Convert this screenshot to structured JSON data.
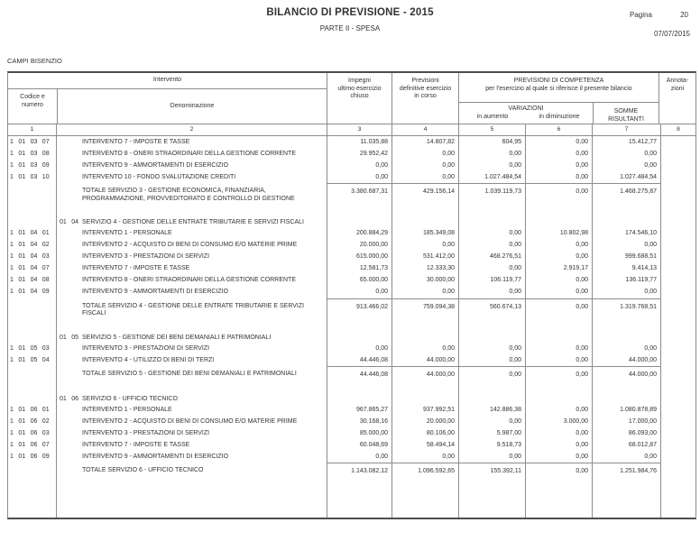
{
  "page": {
    "title": "BILANCIO DI PREVISIONE - 2015",
    "subtitle": "PARTE II - SPESA",
    "page_label": "Pagina",
    "page_number": "20",
    "date": "07/07/2015",
    "entity": "CAMPI BISENZIO"
  },
  "colors": {
    "text": "#333333",
    "grid_line": "#8c8c8c"
  },
  "table": {
    "headers": {
      "intervento": "Intervento",
      "codice": "Codice e\nnumero",
      "denominazione": "Denominazione",
      "impegni": "Impegni\nultimo esercizio\nchiuso",
      "previsioni": "Previsioni\ndefinitive esercizio\nin corso",
      "competenza_line1": "PREVISIONI DI COMPETENZA",
      "competenza_line2": "per l'esercizio al quale si riferisce il presente bilancio",
      "variazioni": "VARIAZIONI",
      "in_aumento": "in aumento",
      "in_diminuzione": "in diminuzione",
      "somme": "SOMME\nRISULTANTI",
      "annotazioni": "Annota-\nzioni"
    },
    "column_numbers": [
      "1",
      "2",
      "3",
      "4",
      "5",
      "6",
      "7",
      "8"
    ],
    "rows": [
      {
        "type": "intervento",
        "code": "1 01 03 07",
        "label": "INTERVENTO 7 - IMPOSTE E TASSE",
        "values": [
          "11.035,88",
          "14.807,82",
          "604,95",
          "0,00",
          "15.412,77"
        ]
      },
      {
        "type": "intervento",
        "code": "1 01 03 08",
        "label": "INTERVENTO 8 - ONERI STRAORDINARI DELLA GESTIONE CORRENTE",
        "values": [
          "29.952,42",
          "0,00",
          "0,00",
          "0,00",
          "0,00"
        ]
      },
      {
        "type": "intervento",
        "code": "1 01 03 09",
        "label": "INTERVENTO 9 - AMMORTAMENTI DI ESERCIZIO",
        "values": [
          "0,00",
          "0,00",
          "0,00",
          "0,00",
          "0,00"
        ]
      },
      {
        "type": "intervento",
        "code": "1 01 03 10",
        "label": "INTERVENTO 10 - FONDO SVALUTAZIONE CREDITI",
        "values": [
          "0,00",
          "0,00",
          "1.027.484,54",
          "0,00",
          "1.027.484,54"
        ]
      },
      {
        "type": "totale",
        "label": "TOTALE SERVIZIO 3 - GESTIONE ECONOMICA, FINANZIARIA, PROGRAMMAZIONE, PROVVEDITORATO E CONTROLLO DI GESTIONE",
        "values": [
          "3.380.687,31",
          "429.156,14",
          "1.039.119,73",
          "0,00",
          "1.468.275,87"
        ]
      },
      {
        "type": "servizio",
        "service_code": "01 04",
        "label": "SERVIZIO 4 - GESTIONE DELLE ENTRATE TRIBUTARIE E SERVIZI FISCALI",
        "values": [
          "",
          "",
          "",
          "",
          ""
        ]
      },
      {
        "type": "intervento",
        "code": "1 01 04 01",
        "label": "INTERVENTO 1 - PERSONALE",
        "values": [
          "200.884,29",
          "185.349,08",
          "0,00",
          "10.802,98",
          "174.546,10"
        ]
      },
      {
        "type": "intervento",
        "code": "1 01 04 02",
        "label": "INTERVENTO 2 - ACQUISTO DI BENI DI CONSUMO E/O MATERIE PRIME",
        "values": [
          "20.000,00",
          "0,00",
          "0,00",
          "0,00",
          "0,00"
        ]
      },
      {
        "type": "intervento",
        "code": "1 01 04 03",
        "label": "INTERVENTO 3 - PRESTAZIONI DI SERVIZI",
        "values": [
          "615.000,00",
          "531.412,00",
          "468.276,51",
          "0,00",
          "999.688,51"
        ]
      },
      {
        "type": "intervento",
        "code": "1 01 04 07",
        "label": "INTERVENTO 7 - IMPOSTE E TASSE",
        "values": [
          "12.581,73",
          "12.333,30",
          "0,00",
          "2.919,17",
          "9.414,13"
        ]
      },
      {
        "type": "intervento",
        "code": "1 01 04 08",
        "label": "INTERVENTO 8 - ONERI STRAORDINARI DELLA GESTIONE CORRENTE",
        "values": [
          "65.000,00",
          "30.000,00",
          "106.119,77",
          "0,00",
          "136.119,77"
        ]
      },
      {
        "type": "intervento",
        "code": "1 01 04 09",
        "label": "INTERVENTO 9 - AMMORTAMENTI DI ESERCIZIO",
        "values": [
          "0,00",
          "0,00",
          "0,00",
          "0,00",
          "0,00"
        ]
      },
      {
        "type": "totale",
        "label": "TOTALE SERVIZIO 4 - GESTIONE DELLE ENTRATE TRIBUTARIE E SERVIZI FISCALI",
        "values": [
          "913.466,02",
          "759.094,38",
          "560.674,13",
          "0,00",
          "1.319.768,51"
        ]
      },
      {
        "type": "servizio",
        "service_code": "01 05",
        "label": "SERVIZIO 5 - GESTIONE DEI BENI DEMANIALI E PATRIMONIALI",
        "values": [
          "",
          "",
          "",
          "",
          ""
        ]
      },
      {
        "type": "intervento",
        "code": "1 01 05 03",
        "label": "INTERVENTO 3 - PRESTAZIONI DI SERVIZI",
        "values": [
          "0,00",
          "0,00",
          "0,00",
          "0,00",
          "0,00"
        ]
      },
      {
        "type": "intervento",
        "code": "1 01 05 04",
        "label": "INTERVENTO 4 - UTILIZZO DI BENI DI TERZI",
        "values": [
          "44.446,08",
          "44.000,00",
          "0,00",
          "0,00",
          "44.000,00"
        ]
      },
      {
        "type": "totale",
        "label": "TOTALE SERVIZIO 5 - GESTIONE DEI BENI DEMANIALI E PATRIMONIALI",
        "values": [
          "44.446,08",
          "44.000,00",
          "0,00",
          "0,00",
          "44.000,00"
        ]
      },
      {
        "type": "servizio",
        "service_code": "01 06",
        "label": "SERVIZIO 6 - UFFICIO TECNICO",
        "values": [
          "",
          "",
          "",
          "",
          ""
        ]
      },
      {
        "type": "intervento",
        "code": "1 01 06 01",
        "label": "INTERVENTO 1 - PERSONALE",
        "values": [
          "967.865,27",
          "937.992,51",
          "142.886,38",
          "0,00",
          "1.080.878,89"
        ]
      },
      {
        "type": "intervento",
        "code": "1 01 06 02",
        "label": "INTERVENTO 2 - ACQUISTO DI BENI DI CONSUMO E/O MATERIE PRIME",
        "values": [
          "30.168,16",
          "20.000,00",
          "0,00",
          "3.000,00",
          "17.000,00"
        ]
      },
      {
        "type": "intervento",
        "code": "1 01 06 03",
        "label": "INTERVENTO 3 - PRESTAZIONI DI SERVIZI",
        "values": [
          "85.000,00",
          "80.106,00",
          "5.987,00",
          "0,00",
          "86.093,00"
        ]
      },
      {
        "type": "intervento",
        "code": "1 01 06 07",
        "label": "INTERVENTO 7 - IMPOSTE E TASSE",
        "values": [
          "60.048,69",
          "58.494,14",
          "9.518,73",
          "0,00",
          "68.012,87"
        ]
      },
      {
        "type": "intervento",
        "code": "1 01 06 09",
        "label": "INTERVENTO 9 - AMMORTAMENTI DI ESERCIZIO",
        "values": [
          "0,00",
          "0,00",
          "0,00",
          "0,00",
          "0,00"
        ]
      },
      {
        "type": "totale",
        "label": "TOTALE SERVIZIO 6 - UFFICIO TECNICO",
        "values": [
          "1.143.082,12",
          "1.096.592,65",
          "155.392,11",
          "0,00",
          "1.251.984,76"
        ]
      }
    ]
  }
}
